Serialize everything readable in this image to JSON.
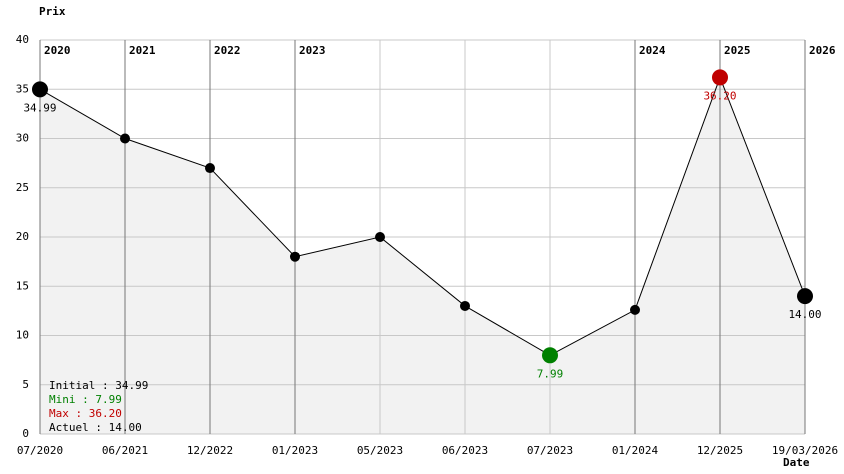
{
  "chart_data": {
    "type": "line",
    "y_label": "Prix",
    "x_label": "Date",
    "categories": [
      "07/2020",
      "06/2021",
      "12/2022",
      "01/2023",
      "05/2023",
      "06/2023",
      "07/2023",
      "01/2024",
      "12/2025",
      "19/03/2026"
    ],
    "values": [
      34.99,
      30,
      27,
      18,
      20,
      13,
      7.99,
      12.6,
      36.2,
      14
    ],
    "value_labels": [
      "34.99",
      null,
      null,
      null,
      null,
      null,
      "7.99",
      null,
      "36.20",
      "14.00"
    ],
    "year_labels": [
      "2020",
      "2021",
      "2022",
      "2023",
      null,
      null,
      null,
      "2024",
      "2025",
      "2026"
    ],
    "ylim": [
      0,
      40
    ],
    "yticks": [
      0,
      5,
      10,
      15,
      20,
      25,
      30,
      35,
      40
    ],
    "grid": true,
    "colors": {
      "line": "#000000",
      "fill": "#f2f2f2",
      "point": "#000000",
      "min": "#008000",
      "max": "#c00000"
    },
    "summary": [
      {
        "text": "Initial : 34.99",
        "color": "#000000"
      },
      {
        "text": "Mini : 7.99",
        "color": "#008000"
      },
      {
        "text": "Max : 36.20",
        "color": "#c00000"
      },
      {
        "text": "Actuel : 14.00",
        "color": "#000000"
      }
    ]
  }
}
